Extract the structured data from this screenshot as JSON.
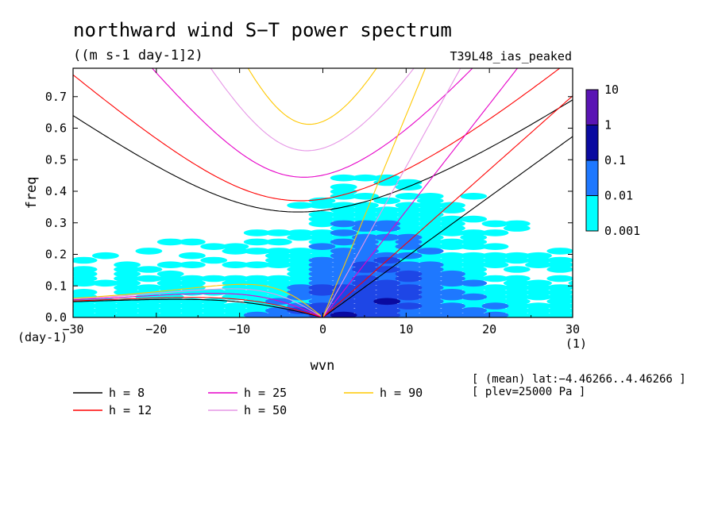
{
  "chart_data": {
    "type": "heatmap",
    "title": "northward wind S−T power spectrum",
    "subtitle": "((m s-1 day-1]2)",
    "run_label": "T39L48_ias_peaked",
    "xlabel": "wvn",
    "ylabel": "freq",
    "x_unit": "(1)",
    "y_unit": "(day-1)",
    "xlim": [
      -30,
      30
    ],
    "ylim": [
      0,
      0.79
    ],
    "x_ticks": [
      -30,
      -20,
      -10,
      0,
      10,
      20,
      30
    ],
    "x_tick_labels": [
      "−30",
      "−20",
      "−10",
      "0",
      "10",
      "20",
      "30"
    ],
    "y_ticks": [
      0,
      0.1,
      0.2,
      0.3,
      0.4,
      0.5,
      0.6,
      0.7
    ],
    "y_tick_labels": [
      "0.0",
      "0.1",
      "0.2",
      "0.3",
      "0.4",
      "0.5",
      "0.6",
      "0.7"
    ],
    "colorbar": {
      "labels": [
        "10",
        "1",
        "0.1",
        "0.01",
        "0.001"
      ],
      "levels": [
        10,
        1,
        0.1,
        0.01,
        0.001
      ],
      "colors": [
        "#5a14b4",
        "#0a0aa0",
        "#1e46e6",
        "#1e78ff",
        "#00ffff"
      ]
    },
    "dispersion_curves": [
      {
        "label": "h = 8",
        "h": 8,
        "color": "#000000"
      },
      {
        "label": "h = 12",
        "h": 12,
        "color": "#ff0000"
      },
      {
        "label": "h = 25",
        "h": 25,
        "color": "#e600c8"
      },
      {
        "label": "h = 50",
        "h": 50,
        "color": "#e696e6"
      },
      {
        "label": "h = 90",
        "h": 90,
        "color": "#ffc800"
      }
    ],
    "info_lines": [
      "[ (mean) lat:−4.46266..4.46266 ]",
      "[ plev=25000 Pa ]"
    ]
  }
}
